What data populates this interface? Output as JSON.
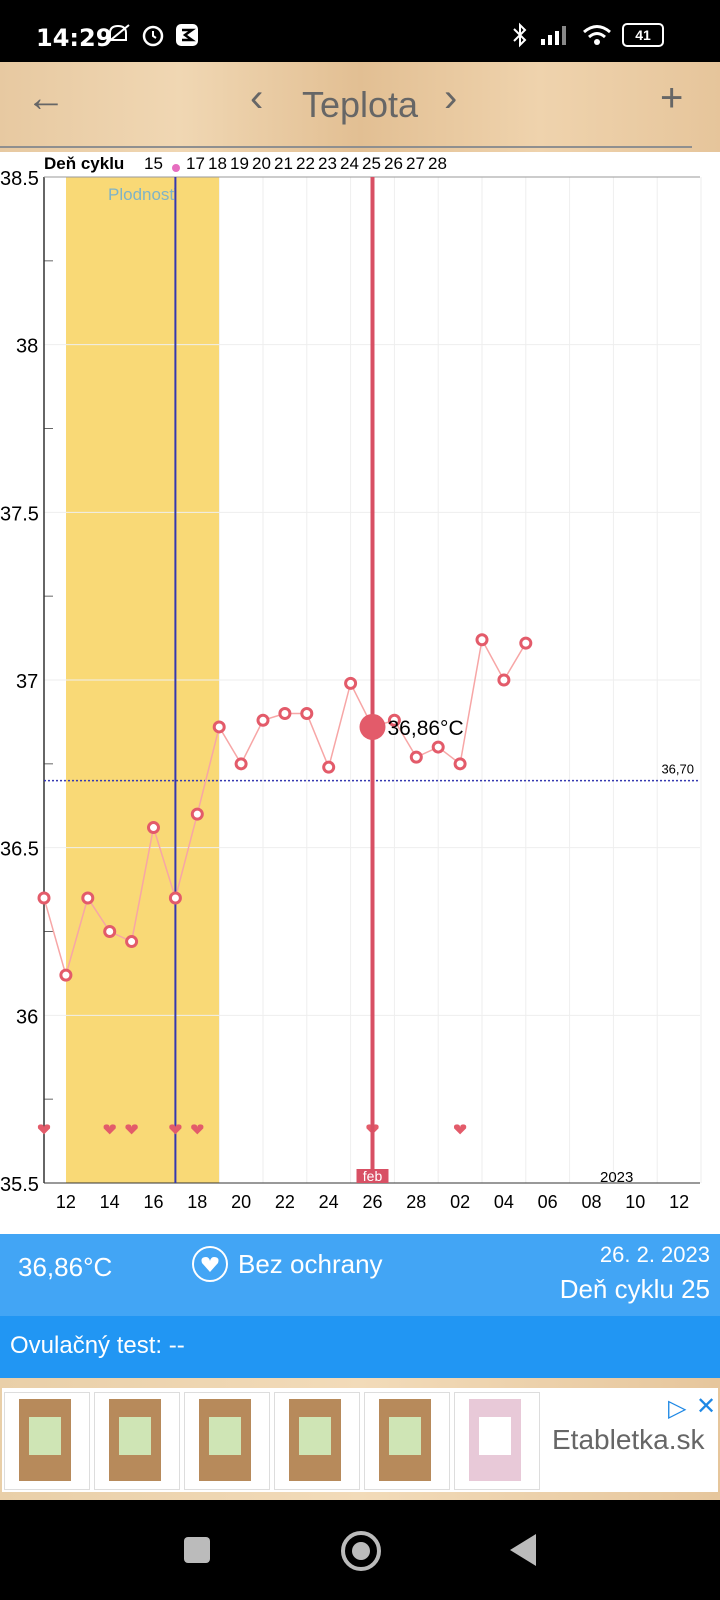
{
  "status_bar": {
    "time": "14:29",
    "battery": "41"
  },
  "app_bar": {
    "back": "←",
    "prev": "‹",
    "title": "Teplota",
    "next": "›",
    "add": "+"
  },
  "chart_data": {
    "type": "line",
    "title": "",
    "header_label": "Deň cyklu",
    "fertility_label": "Plodnosť",
    "cycle_day_labels": [
      "15",
      "17",
      "18",
      "19",
      "20",
      "21",
      "22",
      "23",
      "24",
      "25",
      "26",
      "27",
      "28"
    ],
    "y_ticks": [
      "38.5",
      "38",
      "37.5",
      "37",
      "36.5",
      "36",
      "35.5"
    ],
    "x_tick_labels": [
      "12",
      "14",
      "16",
      "18",
      "20",
      "22",
      "24",
      "26",
      "28",
      "02",
      "04",
      "06",
      "08",
      "10",
      "12"
    ],
    "x_month_label": "feb",
    "year_label": "2023",
    "ylim": [
      35.5,
      38.5
    ],
    "baseline_value": 36.7,
    "baseline_label": "36,70",
    "series": [
      {
        "x": [
          "11",
          "12",
          "13",
          "14",
          "15",
          "16",
          "17",
          "18",
          "19",
          "20",
          "21",
          "22",
          "23",
          "24",
          "25",
          "26",
          "27",
          "28",
          "01",
          "02",
          "03",
          "04",
          "05"
        ],
        "values": [
          36.35,
          36.12,
          36.35,
          36.25,
          36.22,
          36.56,
          36.35,
          36.6,
          36.86,
          36.75,
          36.88,
          36.9,
          36.9,
          36.74,
          36.99,
          36.86,
          36.88,
          36.77,
          36.8,
          36.75,
          37.12,
          37.0,
          37.11
        ]
      }
    ],
    "selected_value_label": "36,86°C",
    "heart_days": [
      "11",
      "14",
      "15",
      "17",
      "18",
      "26",
      "02"
    ],
    "colors": {
      "fertile": "#f9d976",
      "line": "#f7a6a6",
      "point": "#e35b6a",
      "cursor": "#d85064",
      "ovulation": "#3538b0",
      "baseline": "#3538b0"
    }
  },
  "info": {
    "temperature": "36,86°C",
    "protection": "Bez ochrany",
    "date": "26. 2. 2023",
    "cycle_day": "Deň cyklu 25",
    "ovulation_test": "Ovulačný test: --"
  },
  "ad": {
    "brand": "Etabletka.sk"
  }
}
